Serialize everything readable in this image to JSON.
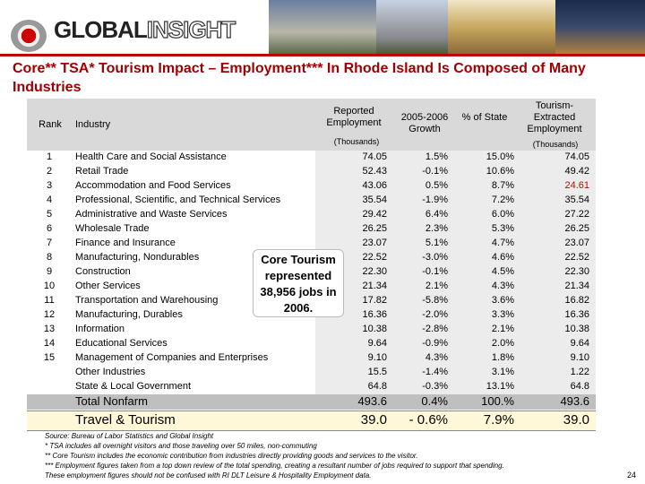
{
  "logo": {
    "first": "GLOBAL",
    "second": "INSIGHT"
  },
  "title": "Core** TSA* Tourism Impact – Employment*** In Rhode Island Is Composed of Many Industries",
  "table": {
    "headers": [
      "Rank",
      "Industry",
      "Reported Employment",
      "2005-2006 Growth",
      "% of State",
      "Tourism-Extracted Employment"
    ],
    "units": {
      "reported": "(Thousands)",
      "extracted": "(Thousands)"
    },
    "rows": [
      {
        "rank": "1",
        "industry": "Health Care and Social Assistance",
        "cells": [
          "74.05",
          "1.5%",
          "15.0%",
          "74.05"
        ]
      },
      {
        "rank": "2",
        "industry": "Retail Trade",
        "cells": [
          "52.43",
          "-0.1%",
          "10.6%",
          "49.42"
        ]
      },
      {
        "rank": "3",
        "industry": "Accommodation and Food Services",
        "cells": [
          "43.06",
          "0.5%",
          "8.7%",
          "24.61"
        ],
        "extracted_color": "#cc0000"
      },
      {
        "rank": "4",
        "industry": "Professional, Scientific, and Technical Services",
        "cells": [
          "35.54",
          "-1.9%",
          "7.2%",
          "35.54"
        ]
      },
      {
        "rank": "5",
        "industry": "Administrative and Waste Services",
        "cells": [
          "29.42",
          "6.4%",
          "6.0%",
          "27.22"
        ]
      },
      {
        "rank": "6",
        "industry": "Wholesale Trade",
        "cells": [
          "26.25",
          "2.3%",
          "5.3%",
          "26.25"
        ]
      },
      {
        "rank": "7",
        "industry": "Finance and Insurance",
        "cells": [
          "23.07",
          "5.1%",
          "4.7%",
          "23.07"
        ]
      },
      {
        "rank": "8",
        "industry": "Manufacturing, Nondurables",
        "cells": [
          "22.52",
          "-3.0%",
          "4.6%",
          "22.52"
        ]
      },
      {
        "rank": "9",
        "industry": "Construction",
        "cells": [
          "22.30",
          "-0.1%",
          "4.5%",
          "22.30"
        ]
      },
      {
        "rank": "10",
        "industry": "Other Services",
        "cells": [
          "21.34",
          "2.1%",
          "4.3%",
          "21.34"
        ]
      },
      {
        "rank": "11",
        "industry": "Transportation and Warehousing",
        "cells": [
          "17.82",
          "-5.8%",
          "3.6%",
          "16.82"
        ]
      },
      {
        "rank": "12",
        "industry": "Manufacturing, Durables",
        "cells": [
          "16.36",
          "-2.0%",
          "3.3%",
          "16.36"
        ]
      },
      {
        "rank": "13",
        "industry": "Information",
        "cells": [
          "10.38",
          "-2.8%",
          "2.1%",
          "10.38"
        ]
      },
      {
        "rank": "14",
        "industry": "Educational Services",
        "cells": [
          "9.64",
          "-0.9%",
          "2.0%",
          "9.64"
        ]
      },
      {
        "rank": "15",
        "industry": "Management of Companies and Enterprises",
        "cells": [
          "9.10",
          "4.3%",
          "1.8%",
          "9.10"
        ]
      },
      {
        "industry": "Other Industries",
        "cells": [
          "15.5",
          "-1.4%",
          "3.1%",
          "1.22"
        ]
      },
      {
        "industry": "State & Local Government",
        "cells": [
          "64.8",
          "-0.3%",
          "13.1%",
          "64.8"
        ]
      }
    ],
    "total": {
      "industry": "Total Nonfarm",
      "cells": [
        "493.6",
        "0.4%",
        "100.%",
        "493.6"
      ]
    },
    "tourism": {
      "industry": "Travel & Tourism",
      "cells": [
        "39.0",
        "- 0.6%",
        "7.9%",
        "39.0"
      ]
    }
  },
  "callout": "Core Tourism represented 38,956 jobs in 2006.",
  "footnotes": [
    "Source:  Bureau of Labor Statistics and Global Insight",
    "* TSA includes all overnight visitors and those traveling over 50 miles, non-commuting",
    "** Core Tourism includes the economic contribution from industries directly providing goods and services to the visitor.",
    "*** Employment figures taken from a top down review of the total spending, creating a resultant number of jobs required to support that spending.",
    "These employment figures should not be confused with RI DLT Leisure & Hospitality Employment data."
  ],
  "page_number": "24"
}
